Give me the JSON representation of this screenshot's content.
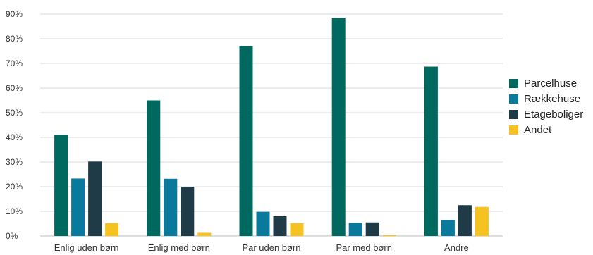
{
  "chart_data": {
    "type": "bar",
    "categories": [
      "Enlig uden børn",
      "Enlig med børn",
      "Par uden børn",
      "Par med børn",
      "Andre"
    ],
    "series": [
      {
        "name": "Parcelhuse",
        "color": "#00695f",
        "values": [
          41,
          55,
          77,
          88.5,
          68.7
        ]
      },
      {
        "name": "Rækkehuse",
        "color": "#0a7a9c",
        "values": [
          23.3,
          23.2,
          9.8,
          5.3,
          6.5
        ]
      },
      {
        "name": "Etageboliger",
        "color": "#1f3b47",
        "values": [
          30.2,
          20,
          8,
          5.5,
          12.5
        ]
      },
      {
        "name": "Andet",
        "color": "#f4c320",
        "values": [
          5.2,
          1.3,
          5.2,
          0.4,
          11.8
        ]
      }
    ],
    "ylim": [
      0,
      90
    ],
    "yticks": [
      "0%",
      "10%",
      "20%",
      "30%",
      "40%",
      "50%",
      "60%",
      "70%",
      "80%",
      "90%"
    ],
    "grid": true,
    "legend_position": "right"
  }
}
